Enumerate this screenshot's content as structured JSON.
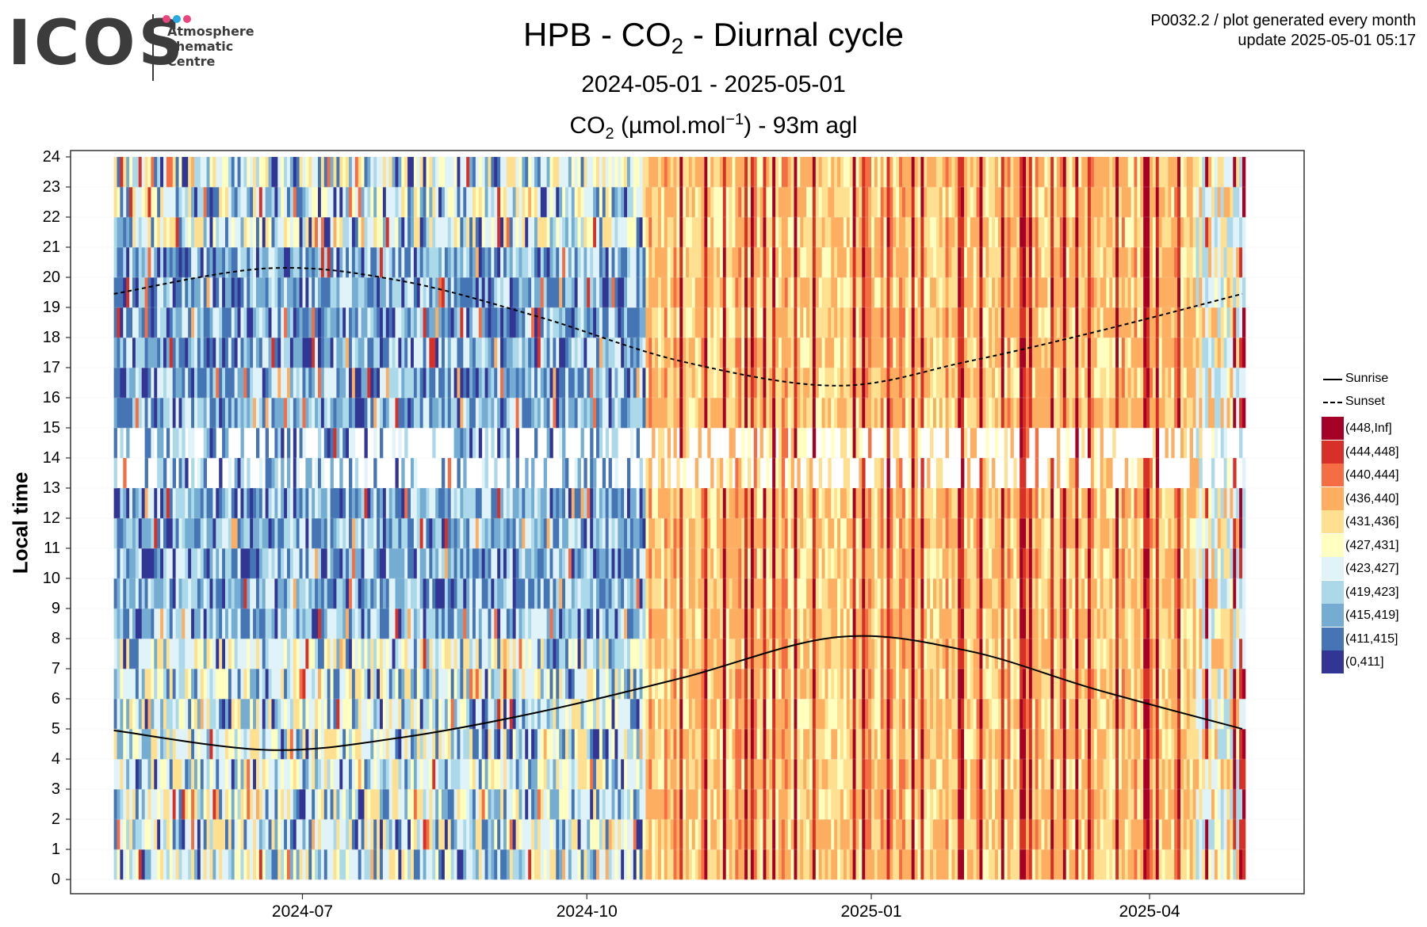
{
  "logo": {
    "word": "ICOS",
    "lines": [
      "Atmosphere",
      "Thematic",
      "Centre"
    ],
    "dot_colors": [
      "#e8467c",
      "#27a9e1",
      "#e8467c"
    ]
  },
  "header": {
    "line1": "P0032.2 / plot generated every month",
    "line2": "update  2025-05-01 05:17"
  },
  "title": {
    "pre": "HPB - CO",
    "sub": "2",
    "post": " - Diurnal cycle"
  },
  "subtitle": "2024-05-01 - 2025-05-01",
  "panel_title": {
    "pre": "CO",
    "sub": "2",
    "mid": " (µmol.mol",
    "sup": "−1",
    "post": ") - 93m agl"
  },
  "chart_data": {
    "type": "heatmap",
    "x": {
      "start": "2024-05-01",
      "end": "2025-05-01",
      "ticks": [
        "2024-07",
        "2024-10",
        "2025-01",
        "2025-04"
      ]
    },
    "ylabel": "Local time",
    "y": {
      "ylim": [
        0,
        24
      ],
      "ticks": [
        0,
        1,
        2,
        3,
        4,
        5,
        6,
        7,
        8,
        9,
        10,
        11,
        12,
        13,
        14,
        15,
        16,
        17,
        18,
        19,
        20,
        21,
        22,
        23,
        24
      ]
    },
    "legend": {
      "lines": [
        "Sunrise",
        "Sunset"
      ],
      "bins": [
        {
          "label": "(448,Inf]",
          "color": "#a50026"
        },
        {
          "label": "(444,448]",
          "color": "#d73027"
        },
        {
          "label": "(440,444]",
          "color": "#f46d43"
        },
        {
          "label": "(436,440]",
          "color": "#fdae61"
        },
        {
          "label": "(431,436]",
          "color": "#fee090"
        },
        {
          "label": "(427,431]",
          "color": "#ffffbf"
        },
        {
          "label": "(423,427]",
          "color": "#e0f3f8"
        },
        {
          "label": "(419,423]",
          "color": "#abd9e9"
        },
        {
          "label": "(415,419]",
          "color": "#74add1"
        },
        {
          "label": "(411,415]",
          "color": "#4575b4"
        },
        {
          "label": "(0,411]",
          "color": "#313695"
        }
      ]
    },
    "sunrise": {
      "dates": [
        "2024-05-01",
        "2024-06-20",
        "2024-08-01",
        "2024-09-15",
        "2024-11-01",
        "2024-12-21",
        "2025-02-01",
        "2025-03-15",
        "2025-05-01"
      ],
      "hours": [
        4.95,
        4.3,
        4.7,
        5.55,
        6.7,
        8.05,
        7.6,
        6.3,
        5.0
      ]
    },
    "sunset": {
      "dates": [
        "2024-05-01",
        "2024-06-20",
        "2024-08-01",
        "2024-09-15",
        "2024-11-01",
        "2024-12-21",
        "2025-02-01",
        "2025-03-15",
        "2025-05-01"
      ],
      "hours": [
        19.45,
        20.3,
        19.9,
        18.7,
        17.2,
        16.4,
        17.2,
        18.2,
        19.45
      ]
    },
    "daily_mean_class": {
      "note_periods": [
        {
          "from": "2024-05-01",
          "to": "2024-10-20",
          "typical_bins": [
            "(431,436]",
            "(427,431]",
            "(423,427]",
            "(419,423]",
            "(415,419]",
            "(411,415]",
            "(0,411]"
          ]
        },
        {
          "from": "2024-10-20",
          "to": "2025-05-01",
          "typical_bins": [
            "(448,Inf]",
            "(444,448]",
            "(440,444]",
            "(436,440]",
            "(431,436]",
            "(427,431]"
          ]
        }
      ]
    }
  }
}
